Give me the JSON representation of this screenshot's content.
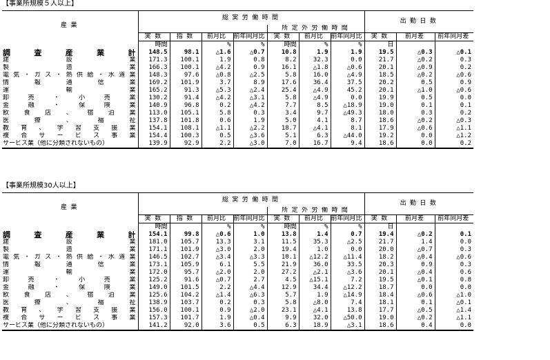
{
  "col_labels": {
    "sogo": "総 実 労 働 時 間",
    "shotei": "所 定 外 労 働 時 間",
    "shukkin": "出 勤 日 数",
    "jissu": "実 数",
    "shisu": "指 数",
    "zengetsuhi": "前月比",
    "zennen_dogetsuhi": "前年同月比",
    "zengetsusa": "前月差",
    "zennen_dogetsusa": "前年同月差",
    "unit_jikan": "時間",
    "unit_pct": "%",
    "unit_nichi": "日"
  },
  "sections": [
    {
      "title": "【事業所規模５人以上】",
      "industry_header": "産 業",
      "rows": [
        {
          "name": "調 査 産 業 計",
          "bold": true,
          "v": [
            "148.5",
            "98.1",
            "△1.6",
            "△0.7",
            "10.8",
            "1.9",
            "1.9",
            "19.5",
            "△0.3",
            "△0.1"
          ]
        },
        {
          "name": "建 設 業",
          "v": [
            "171.3",
            "100.1",
            "1.9",
            "0.8",
            "8.2",
            "32.3",
            "0.0",
            "21.7",
            "△0.2",
            "0.3"
          ]
        },
        {
          "name": "製 造 業",
          "v": [
            "166.3",
            "100.1",
            "△4.2",
            "0.9",
            "16.1",
            "△1.8",
            "△0.6",
            "20.1",
            "△0.9",
            "0.2"
          ]
        },
        {
          "name": "電気・ガス・熱供給・水道業",
          "v": [
            "148.3",
            "97.6",
            "△0.8",
            "△2.5",
            "5.8",
            "16.0",
            "△4.9",
            "18.5",
            "△0.2",
            "△0.6"
          ]
        },
        {
          "name": "情 報 通 信 業",
          "v": [
            "169.2",
            "101.9",
            "3.7",
            "8.9",
            "17.6",
            "36.4",
            "37.5",
            "20.2",
            "0.5",
            "0.9"
          ]
        },
        {
          "name": "運 輸 業",
          "v": [
            "165.2",
            "91.3",
            "△5.3",
            "△2.4",
            "25.4",
            "△4.9",
            "45.2",
            "20.1",
            "△1.0",
            "△0.6"
          ]
        },
        {
          "name": "卸 売 ・ 小 売 業",
          "v": [
            "130.2",
            "91.4",
            "△4.2",
            "△3.1",
            "5.8",
            "△4.9",
            "0.0",
            "19.9",
            "0.5",
            "0.0"
          ]
        },
        {
          "name": "金 融 ・ 保 険 業",
          "v": [
            "140.9",
            "96.8",
            "0.2",
            "△4.2",
            "7.7",
            "8.5",
            "△18.9",
            "19.0",
            "0.1",
            "0.1"
          ]
        },
        {
          "name": "飲 食 店 、 宿 泊 業",
          "v": [
            "113.0",
            "105.1",
            "5.8",
            "0.3",
            "3.4",
            "9.7",
            "△49.3",
            "18.0",
            "0.3",
            "0.2"
          ]
        },
        {
          "name": "医 療 、 福 祉",
          "v": [
            "137.8",
            "101.8",
            "0.6",
            "1.9",
            "5.0",
            "4.1",
            "8.7",
            "18.6",
            "△0.2",
            "△0.3"
          ]
        },
        {
          "name": "教 育 、 学 習 支 援 業",
          "v": [
            "154.1",
            "108.1",
            "△1.1",
            "△2.2",
            "18.7",
            "△4.1",
            "8.1",
            "17.9",
            "△0.6",
            "△1.1"
          ]
        },
        {
          "name": "複 合 サ ー ビ ス 事 業",
          "v": [
            "154.4",
            "100.3",
            "0.5",
            "△3.6",
            "5.1",
            "6.3",
            "△44.0",
            "19.2",
            "0.0",
            "△1.2"
          ]
        },
        {
          "name": "サービス業（他に分類されないもの）",
          "plain": true,
          "v": [
            "139.9",
            "92.9",
            "2.2",
            "△3.0",
            "7.0",
            "16.7",
            "9.4",
            "18.6",
            "0.0",
            "0.2"
          ]
        }
      ]
    },
    {
      "title": "【事業所規模30人以上】",
      "industry_header": "産 業",
      "rows": [
        {
          "name": "調 査 産 業 計",
          "bold": true,
          "v": [
            "154.1",
            "99.8",
            "△0.6",
            "1.0",
            "13.8",
            "1.4",
            "0.7",
            "19.4",
            "△0.2",
            "0.1"
          ]
        },
        {
          "name": "建 設 業",
          "v": [
            "181.0",
            "105.7",
            "13.3",
            "3.1",
            "11.5",
            "35.3",
            "△2.5",
            "21.7",
            "1.4",
            "0.0"
          ]
        },
        {
          "name": "製 造 業",
          "v": [
            "171.1",
            "101.9",
            "△3.0",
            "2.0",
            "19.4",
            "1.0",
            "0.0",
            "20.0",
            "△0.7",
            "0.3"
          ]
        },
        {
          "name": "電気・ガス・熱供給・水道業",
          "v": [
            "146.5",
            "102.7",
            "△3.4",
            "△3.3",
            "10.1",
            "△12.2",
            "△11.4",
            "18.2",
            "△0.4",
            "△0.6"
          ]
        },
        {
          "name": "情 報 通 信 業",
          "v": [
            "173.1",
            "105.9",
            "6.1",
            "5.5",
            "21.9",
            "36.0",
            "33.5",
            "20.3",
            "0.9",
            "0.3"
          ]
        },
        {
          "name": "運 輸 業",
          "v": [
            "172.0",
            "95.7",
            "△2.0",
            "2.0",
            "27.2",
            "△2.1",
            "△3.6",
            "20.1",
            "△0.4",
            "0.6"
          ]
        },
        {
          "name": "卸 売 ・ 小 売 業",
          "v": [
            "125.2",
            "91.6",
            "△0.7",
            "2.7",
            "4.5",
            "△15.1",
            "7.2",
            "19.5",
            "△0.1",
            "0.8"
          ]
        },
        {
          "name": "金 融 ・ 保 険 業",
          "v": [
            "149.0",
            "101.5",
            "2.2",
            "△4.4",
            "12.9",
            "34.4",
            "△12.2",
            "18.7",
            "0.0",
            "0.0"
          ]
        },
        {
          "name": "飲 食 店 、 宿 泊 業",
          "v": [
            "125.6",
            "104.2",
            "△1.4",
            "△6.3",
            "5.7",
            "1.9",
            "△14.9",
            "18.4",
            "△0.6",
            "△1.0"
          ]
        },
        {
          "name": "医 療 、 福 祉",
          "v": [
            "138.9",
            "103.7",
            "0.2",
            "0.3",
            "5.8",
            "△8.0",
            "7.4",
            "18.1",
            "0.1",
            "△0.1"
          ]
        },
        {
          "name": "教 育 、 学 習 支 援 業",
          "v": [
            "156.0",
            "100.1",
            "0.9",
            "△2.0",
            "23.1",
            "△4.1",
            "13.8",
            "17.7",
            "△0.5",
            "△1.4"
          ]
        },
        {
          "name": "複 合 サ ー ビ ス 事 業",
          "v": [
            "157.3",
            "101.7",
            "1.9",
            "△0.4",
            "9.9",
            "32.0",
            "△50.0",
            "19.0",
            "△0.2",
            "△1.1"
          ]
        },
        {
          "name": "サービス業（他に分類されないもの）",
          "plain": true,
          "v": [
            "141.2",
            "92.0",
            "3.6",
            "0.5",
            "6.3",
            "18.9",
            "△3.1",
            "18.6",
            "0.4",
            "0.0"
          ]
        }
      ]
    }
  ]
}
